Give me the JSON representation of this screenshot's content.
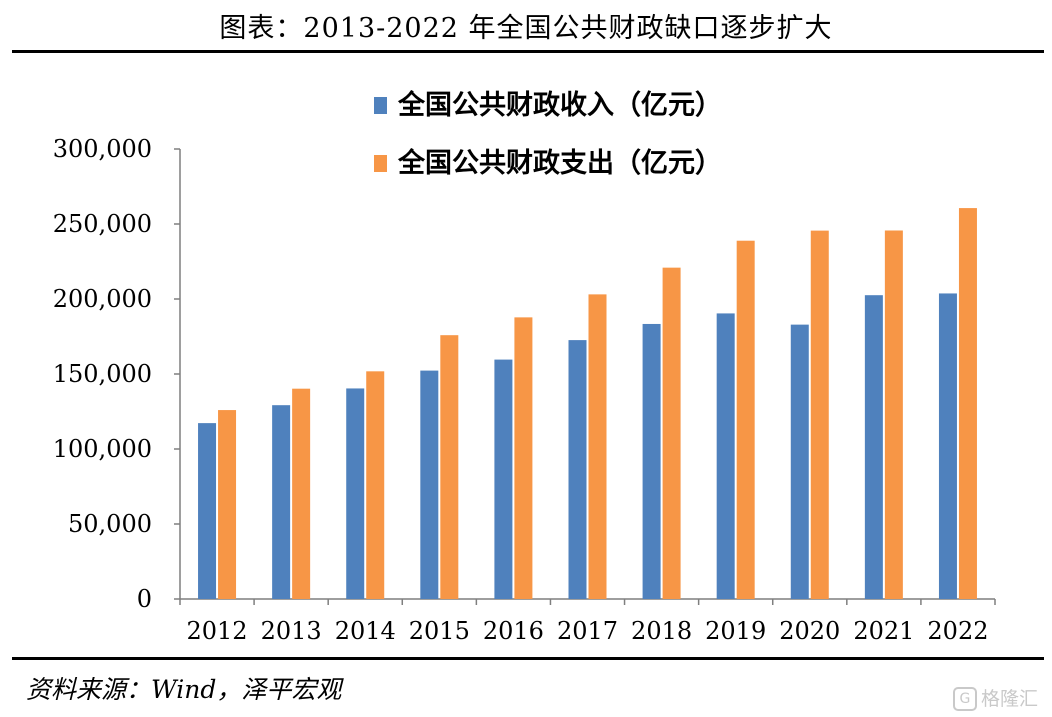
{
  "title": "图表：2013-2022 年全国公共财政缺口逐步扩大",
  "source": "资料来源：Wind，泽平宏观",
  "watermark": "格隆汇",
  "colors": {
    "income": "#4F81BD",
    "expense": "#F79646",
    "axis": "#7f7f7f"
  },
  "chart_data": {
    "type": "bar",
    "categories": [
      "2012",
      "2013",
      "2014",
      "2015",
      "2016",
      "2017",
      "2018",
      "2019",
      "2020",
      "2021",
      "2022"
    ],
    "series": [
      {
        "name": "全国公共财政收入（亿元）",
        "values": [
          117254,
          129210,
          140370,
          152269,
          159605,
          172593,
          183360,
          190390,
          182914,
          202539,
          203703
        ]
      },
      {
        "name": "全国公共财政支出（亿元）",
        "values": [
          125953,
          140212,
          151786,
          175878,
          187755,
          203085,
          220904,
          238858,
          245588,
          245673,
          260609
        ]
      }
    ],
    "yticks": [
      "0",
      "50,000",
      "100,000",
      "150,000",
      "200,000",
      "250,000",
      "300,000"
    ],
    "ylim": [
      0,
      300000
    ],
    "grid": false,
    "legend": "top-center"
  }
}
